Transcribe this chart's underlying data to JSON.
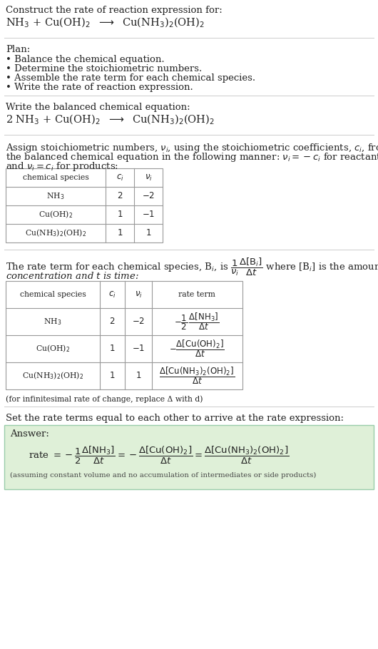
{
  "bg_color": "#ffffff",
  "title_line1": "Construct the rate of reaction expression for:",
  "plan_header": "Plan:",
  "plan_items": [
    "• Balance the chemical equation.",
    "• Determine the stoichiometric numbers.",
    "• Assemble the rate term for each chemical species.",
    "• Write the rate of reaction expression."
  ],
  "balanced_header": "Write the balanced chemical equation:",
  "answer_label": "Answer:",
  "answer_bg": "#dff0d8",
  "answer_border": "#b8d8b8",
  "infinitesimal_note": "(for infinitesimal rate of change, replace Δ with d)",
  "set_equal_text": "Set the rate terms equal to each other to arrive at the rate expression:",
  "assume_note": "(assuming constant volume and no accumulation of intermediates or side products)",
  "font_size_body": 9.5,
  "font_size_small": 8.5,
  "font_size_tiny": 7.8,
  "table_line_color": "#999999",
  "sep_line_color": "#cccccc"
}
